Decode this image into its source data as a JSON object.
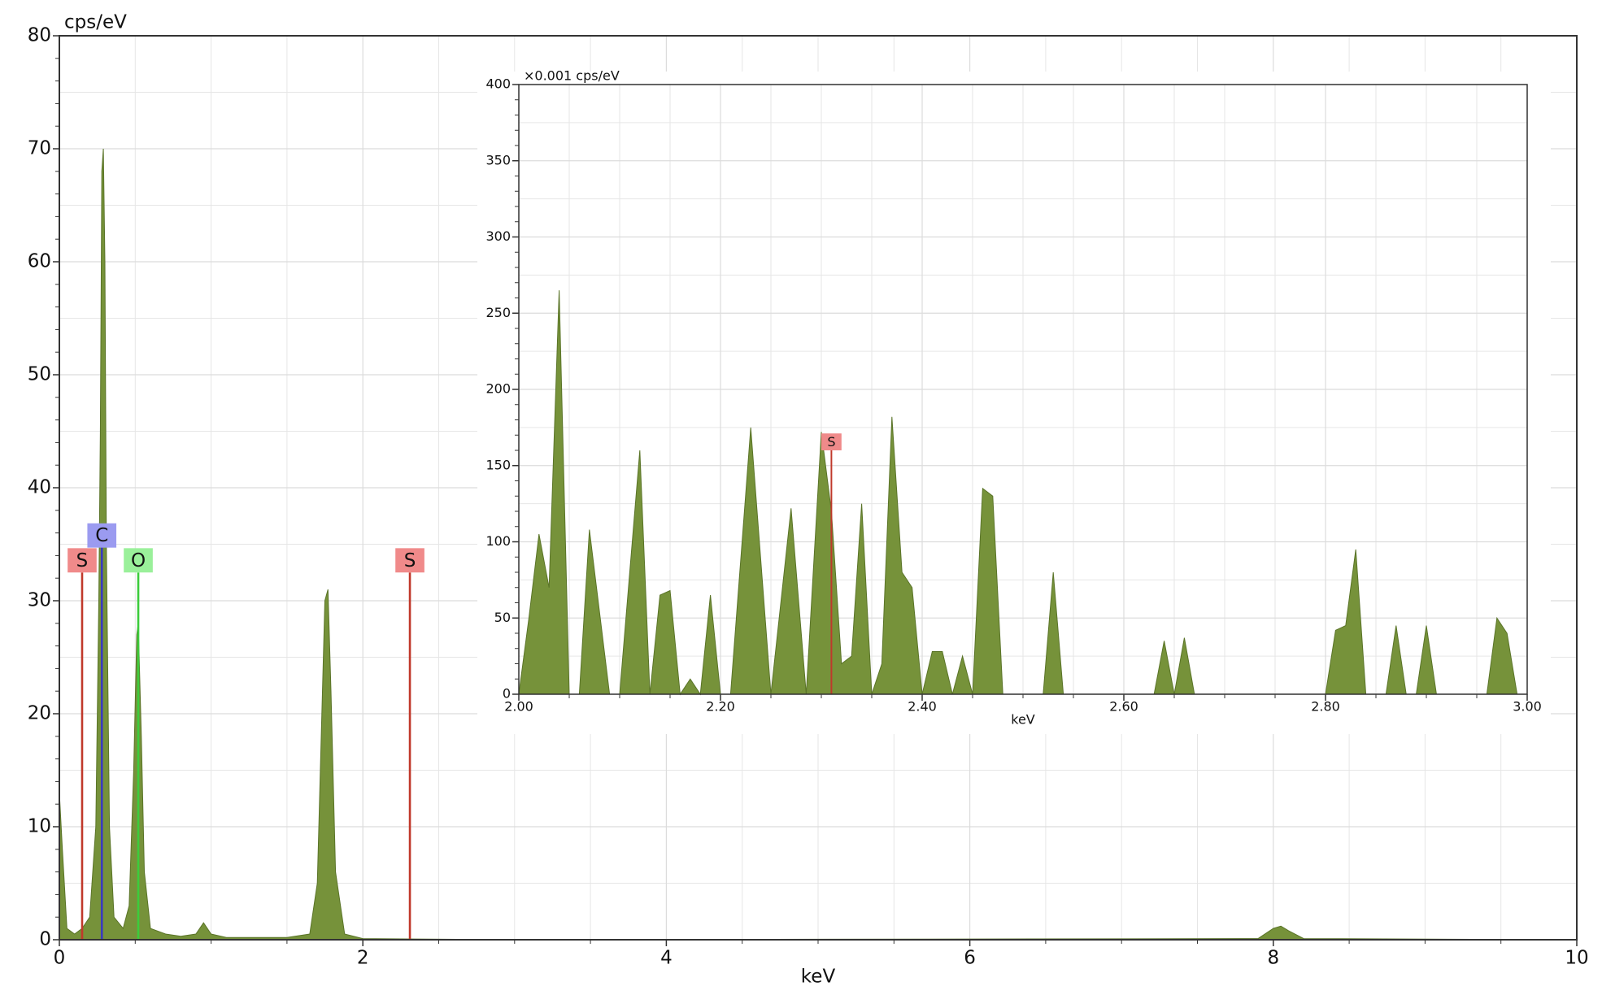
{
  "chart_data": [
    {
      "type": "area",
      "y_label": "cps/eV",
      "x_label": "keV",
      "x": [
        0.0,
        0.02,
        0.05,
        0.1,
        0.15,
        0.2,
        0.24,
        0.26,
        0.27,
        0.28,
        0.29,
        0.3,
        0.31,
        0.33,
        0.36,
        0.42,
        0.46,
        0.49,
        0.51,
        0.52,
        0.54,
        0.56,
        0.6,
        0.7,
        0.8,
        0.9,
        0.95,
        1.0,
        1.1,
        1.5,
        1.65,
        1.7,
        1.73,
        1.75,
        1.77,
        1.79,
        1.82,
        1.88,
        2.0,
        3.0,
        7.9,
        8.0,
        8.05,
        8.1,
        8.2,
        10.0
      ],
      "values": [
        13,
        8,
        1,
        0.5,
        1,
        2,
        10,
        30,
        45,
        68,
        70,
        60,
        35,
        10,
        2,
        1,
        3,
        15,
        27,
        28,
        18,
        6,
        1,
        0.5,
        0.3,
        0.5,
        1.5,
        0.5,
        0.2,
        0.2,
        0.5,
        5,
        20,
        30,
        31,
        22,
        6,
        0.5,
        0.1,
        0,
        0.1,
        1,
        1.2,
        0.8,
        0.1,
        0
      ],
      "color": "#76923a",
      "xlim": [
        0,
        10
      ],
      "xticks": [
        0,
        2,
        4,
        6,
        8,
        10
      ],
      "ylim": [
        0,
        80
      ],
      "yticks": [
        0,
        10,
        20,
        30,
        40,
        50,
        60,
        70,
        80
      ],
      "grid": true,
      "markers": [
        {
          "label": "S",
          "x": 0.15,
          "y": 32.5,
          "color": "#c0392b",
          "label_color": "#f08a8a"
        },
        {
          "label": "C",
          "x": 0.28,
          "y": 34.7,
          "color": "#3a3ac0",
          "label_color": "#9b9bf0"
        },
        {
          "label": "O",
          "x": 0.52,
          "y": 32.5,
          "color": "#3ccc3c",
          "label_color": "#9af09a"
        },
        {
          "label": "S",
          "x": 2.31,
          "y": 32.5,
          "color": "#c0392b",
          "label_color": "#f08a8a"
        }
      ]
    },
    {
      "type": "area",
      "y_label": "×0.001 cps/eV",
      "x_label": "keV",
      "x": [
        2.0,
        2.01,
        2.02,
        2.03,
        2.04,
        2.05,
        2.06,
        2.07,
        2.09,
        2.1,
        2.12,
        2.13,
        2.14,
        2.15,
        2.16,
        2.17,
        2.18,
        2.19,
        2.2,
        2.21,
        2.23,
        2.25,
        2.27,
        2.285,
        2.3,
        2.31,
        2.32,
        2.33,
        2.34,
        2.35,
        2.36,
        2.37,
        2.38,
        2.39,
        2.4,
        2.41,
        2.42,
        2.43,
        2.44,
        2.45,
        2.46,
        2.47,
        2.48,
        2.52,
        2.53,
        2.54,
        2.63,
        2.64,
        2.65,
        2.66,
        2.67,
        2.8,
        2.81,
        2.82,
        2.83,
        2.84,
        2.86,
        2.87,
        2.88,
        2.89,
        2.9,
        2.91,
        2.96,
        2.97,
        2.98,
        2.99
      ],
      "values": [
        0,
        50,
        105,
        70,
        265,
        0,
        0,
        108,
        0,
        0,
        160,
        0,
        65,
        68,
        0,
        10,
        0,
        65,
        0,
        0,
        175,
        0,
        122,
        0,
        172,
        120,
        20,
        25,
        125,
        0,
        20,
        182,
        80,
        70,
        0,
        28,
        28,
        0,
        25,
        0,
        135,
        130,
        0,
        0,
        80,
        0,
        0,
        35,
        0,
        37,
        0,
        0,
        42,
        45,
        95,
        0,
        0,
        45,
        0,
        0,
        45,
        0,
        0,
        50,
        40,
        0
      ],
      "color": "#76923a",
      "xlim": [
        2.0,
        3.0
      ],
      "xticks": [
        {
          "value": 2.0,
          "label": "2.00"
        },
        {
          "value": 2.2,
          "label": "2.20"
        },
        {
          "value": 2.4,
          "label": "2.40"
        },
        {
          "value": 2.6,
          "label": "2.60"
        },
        {
          "value": 2.8,
          "label": "2.80"
        },
        {
          "value": 3.0,
          "label": "3.00"
        }
      ],
      "ylim": [
        0,
        400
      ],
      "yticks": [
        0,
        50,
        100,
        150,
        200,
        250,
        300,
        350,
        400
      ],
      "grid": true,
      "markers": [
        {
          "label": "S",
          "x": 2.31,
          "y": 160,
          "color": "#c0392b",
          "label_color": "#f08a8a"
        }
      ]
    }
  ]
}
